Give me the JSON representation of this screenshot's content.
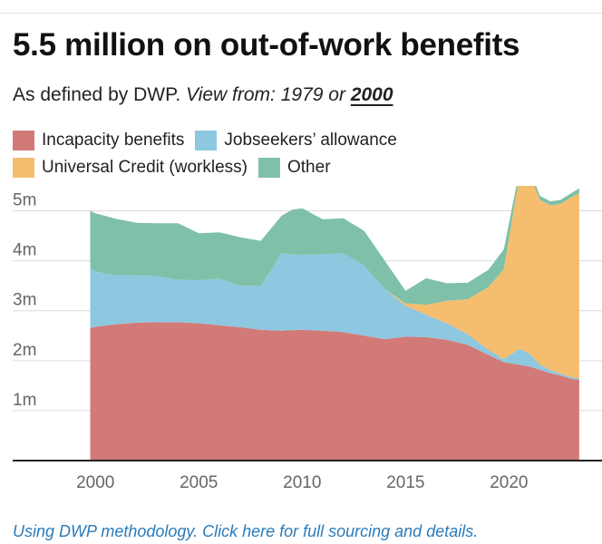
{
  "title": "5.5 million on out-of-work benefits",
  "subtitle": {
    "text": "As defined by DWP.",
    "view_label": "View from:",
    "option_1979": "1979",
    "or": "or",
    "option_2000": "2000"
  },
  "footer": "Using DWP methodology. Click here for full sourcing and details.",
  "colors": {
    "incapacity": "#d27a78",
    "jobseekers": "#8ec7e0",
    "universal_credit": "#f5bd6e",
    "other": "#7fc0a8"
  },
  "chart_data": {
    "type": "area",
    "stacked": true,
    "title": "5.5 million on out-of-work benefits",
    "xlabel": "",
    "ylabel": "",
    "xlim": [
      1996,
      2024.5
    ],
    "ylim": [
      0,
      5.5
    ],
    "grid": true,
    "legend_position": "top",
    "x_ticks": [
      2000,
      2005,
      2010,
      2015,
      2020
    ],
    "x_tick_labels": [
      "2000",
      "2005",
      "2010",
      "2015",
      "2020"
    ],
    "y_ticks": [
      1,
      2,
      3,
      4,
      5
    ],
    "y_tick_labels": [
      "1m",
      "2m",
      "3m",
      "4m",
      "5m"
    ],
    "x": [
      1999.75,
      2000,
      2001,
      2002,
      2003,
      2004,
      2005,
      2006,
      2007,
      2008,
      2009,
      2009.5,
      2010,
      2011,
      2012,
      2013,
      2014,
      2015,
      2016,
      2017,
      2018,
      2019,
      2019.75,
      2020.5,
      2021,
      2021.5,
      2022,
      2022.5,
      2023,
      2023.4
    ],
    "series": [
      {
        "name": "Incapacity benefits",
        "color_key": "incapacity",
        "values": [
          2.65,
          2.68,
          2.73,
          2.76,
          2.77,
          2.77,
          2.75,
          2.71,
          2.67,
          2.62,
          2.6,
          2.61,
          2.62,
          2.6,
          2.57,
          2.5,
          2.43,
          2.48,
          2.47,
          2.42,
          2.32,
          2.12,
          1.97,
          1.92,
          1.88,
          1.82,
          1.75,
          1.7,
          1.64,
          1.62
        ]
      },
      {
        "name": "Jobseekers’ allowance",
        "color_key": "jobseekers",
        "values": [
          1.22,
          1.1,
          0.98,
          0.95,
          0.92,
          0.85,
          0.86,
          0.93,
          0.83,
          0.88,
          1.56,
          1.52,
          1.5,
          1.53,
          1.58,
          1.4,
          1.0,
          0.62,
          0.45,
          0.33,
          0.21,
          0.1,
          0.06,
          0.32,
          0.26,
          0.1,
          0.06,
          0.04,
          0.03,
          0.03
        ]
      },
      {
        "name": "Universal Credit (workless)",
        "color_key": "universal_credit",
        "values": [
          0,
          0,
          0,
          0,
          0,
          0,
          0,
          0,
          0,
          0,
          0,
          0,
          0,
          0,
          0,
          0,
          0,
          0.05,
          0.2,
          0.45,
          0.7,
          1.25,
          1.8,
          3.45,
          3.6,
          3.3,
          3.3,
          3.4,
          3.6,
          3.7
        ]
      },
      {
        "name": "Other",
        "color_key": "other",
        "values": [
          1.13,
          1.17,
          1.13,
          1.05,
          1.06,
          1.13,
          0.94,
          0.93,
          0.97,
          0.9,
          0.74,
          0.89,
          0.93,
          0.7,
          0.7,
          0.7,
          0.57,
          0.25,
          0.53,
          0.35,
          0.33,
          0.35,
          0.4,
          0.11,
          0.1,
          0.08,
          0.08,
          0.08,
          0.08,
          0.1
        ]
      }
    ]
  }
}
